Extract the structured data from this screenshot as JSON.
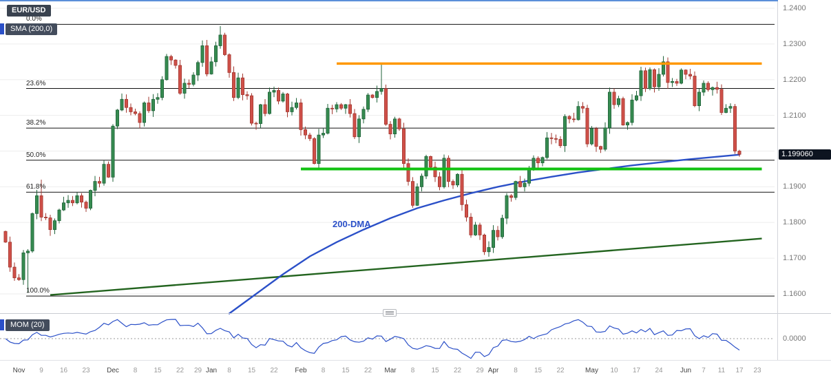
{
  "header": {
    "symbol": "EUR/USD",
    "sma_label": "SMA (200,0)"
  },
  "overlays": {
    "dma_label": "200-DMA"
  },
  "momentum_panel": {
    "label": "MOM (20)",
    "zero_label": "0.0000",
    "period": 20
  },
  "price_axis": {
    "labels": [
      "1.2400",
      "1.2300",
      "1.2200",
      "1.2100",
      "1.1900",
      "1.1800",
      "1.1700",
      "1.1600"
    ],
    "gridlines": [
      1.24,
      1.23,
      1.22,
      1.21,
      1.2,
      1.19,
      1.18,
      1.17,
      1.16
    ],
    "last_price": "1.199060",
    "last_price_value": 1.19906
  },
  "time_axis": {
    "ticks": [
      [
        "Nov",
        3
      ],
      [
        "9",
        8
      ],
      [
        "16",
        13
      ],
      [
        "23",
        18
      ],
      [
        "Dec",
        24
      ],
      [
        "8",
        29
      ],
      [
        "15",
        34
      ],
      [
        "22",
        39
      ],
      [
        "29",
        43
      ],
      [
        "Jan",
        46
      ],
      [
        "8",
        50
      ],
      [
        "15",
        55
      ],
      [
        "22",
        60
      ],
      [
        "Feb",
        66
      ],
      [
        "8",
        71
      ],
      [
        "15",
        76
      ],
      [
        "22",
        81
      ],
      [
        "Mar",
        86
      ],
      [
        "8",
        91
      ],
      [
        "15",
        96
      ],
      [
        "22",
        101
      ],
      [
        "29",
        106
      ],
      [
        "Apr",
        109
      ],
      [
        "8",
        114
      ],
      [
        "15",
        119
      ],
      [
        "22",
        124
      ],
      [
        "May",
        131
      ],
      [
        "10",
        136
      ],
      [
        "17",
        141
      ],
      [
        "24",
        146
      ],
      [
        "Jun",
        152
      ],
      [
        "7",
        156
      ],
      [
        "11",
        160
      ],
      [
        "17",
        164
      ],
      [
        "23",
        168
      ]
    ]
  },
  "chart_data": {
    "type": "candlestick",
    "symbol": "EUR/USD",
    "ylim": [
      1.155,
      1.242
    ],
    "closes": [
      1.1745,
      1.1675,
      1.1645,
      1.164,
      1.1715,
      1.172,
      1.1825,
      1.1875,
      1.1815,
      1.1813,
      1.178,
      1.1805,
      1.1835,
      1.1855,
      1.1862,
      1.1855,
      1.1875,
      1.1857,
      1.184,
      1.189,
      1.1915,
      1.191,
      1.1963,
      1.1927,
      1.207,
      1.2115,
      1.2145,
      1.2122,
      1.211,
      1.2105,
      1.208,
      1.2135,
      1.2113,
      1.2145,
      1.215,
      1.22,
      1.2265,
      1.2255,
      1.224,
      1.2162,
      1.219,
      1.2187,
      1.2213,
      1.2248,
      1.2295,
      1.2216,
      1.225,
      1.2295,
      1.2325,
      1.227,
      1.222,
      1.215,
      1.2205,
      1.2158,
      1.2155,
      1.2078,
      1.2077,
      1.213,
      1.2105,
      1.2165,
      1.217,
      1.214,
      1.216,
      1.211,
      1.2122,
      1.2135,
      1.206,
      1.2045,
      1.2035,
      1.1965,
      1.2045,
      1.205,
      1.212,
      1.2118,
      1.213,
      1.212,
      1.213,
      1.2105,
      1.204,
      1.209,
      1.2117,
      1.2157,
      1.215,
      1.2167,
      1.2175,
      1.2075,
      1.2048,
      1.209,
      1.2062,
      1.1965,
      1.1915,
      1.1848,
      1.19,
      1.193,
      1.1985,
      1.1955,
      1.1928,
      1.19,
      1.198,
      1.1915,
      1.1905,
      1.1935,
      1.185,
      1.1815,
      1.1765,
      1.1793,
      1.1765,
      1.1718,
      1.173,
      1.1778,
      1.176,
      1.1812,
      1.1875,
      1.187,
      1.1915,
      1.19,
      1.191,
      1.1948,
      1.198,
      1.1967,
      1.1982,
      1.2037,
      1.2035,
      1.2033,
      1.2015,
      1.2097,
      1.209,
      1.2088,
      1.2125,
      1.212,
      1.202,
      1.2063,
      1.2013,
      1.2005,
      1.2065,
      1.2165,
      1.213,
      1.2147,
      1.2073,
      1.208,
      1.2143,
      1.2155,
      1.2225,
      1.2175,
      1.2228,
      1.218,
      1.2215,
      1.225,
      1.2192,
      1.2195,
      1.219,
      1.2227,
      1.2215,
      1.221,
      1.2127,
      1.2165,
      1.219,
      1.2172,
      1.2178,
      1.2173,
      1.2108,
      1.212,
      1.2125,
      1.2,
      1.1991
    ],
    "first_open": 1.1775,
    "wick_overrides": {
      "5": {
        "low": 1.1603
      },
      "8": {
        "high": 1.192
      },
      "44": {
        "high": 1.231
      },
      "48": {
        "high": 1.235
      },
      "70": {
        "low": 1.1952
      },
      "84": {
        "high": 1.2243
      },
      "108": {
        "low": 1.1704
      },
      "147": {
        "high": 1.2266
      },
      "163": {
        "high": 1.2132,
        "low": 1.1992
      },
      "164": {
        "low": 1.1984
      }
    },
    "fib": {
      "high": 1.2355,
      "low": 1.1594,
      "levels": [
        {
          "pct": "0.0%",
          "value": 0
        },
        {
          "pct": "23.6%",
          "value": 0.236
        },
        {
          "pct": "38.2%",
          "value": 0.382
        },
        {
          "pct": "50.0%",
          "value": 0.5
        },
        {
          "pct": "61.8%",
          "value": 0.618
        },
        {
          "pct": "100.0%",
          "value": 1
        }
      ]
    },
    "resistance_line": {
      "price": 1.2245,
      "from_i": 74,
      "to_i": 169
    },
    "support_line": {
      "price": 1.195,
      "from_i": 66,
      "to_i": 169
    },
    "trendline": {
      "from": [
        10,
        1.1597
      ],
      "to": [
        169,
        1.1755
      ]
    },
    "dma_points": [
      [
        50,
        1.1545
      ],
      [
        56,
        1.16
      ],
      [
        62,
        1.1655
      ],
      [
        68,
        1.1705
      ],
      [
        74,
        1.1745
      ],
      [
        80,
        1.178
      ],
      [
        86,
        1.1812
      ],
      [
        92,
        1.184
      ],
      [
        98,
        1.1862
      ],
      [
        104,
        1.1882
      ],
      [
        110,
        1.19
      ],
      [
        116,
        1.1915
      ],
      [
        122,
        1.1928
      ],
      [
        128,
        1.194
      ],
      [
        134,
        1.195
      ],
      [
        140,
        1.196
      ],
      [
        146,
        1.1968
      ],
      [
        152,
        1.1976
      ],
      [
        158,
        1.1983
      ],
      [
        164,
        1.199
      ]
    ],
    "momentum": {
      "period": 20,
      "zero": 0
    }
  },
  "colors": {
    "up": "#368b50",
    "up_stroke": "#20633a",
    "down": "#cf5049",
    "down_stroke": "#a33830",
    "dma": "#2b50c8",
    "trend": "#23641f",
    "resistance": "#ff9800",
    "support": "#12c212",
    "grid": "#ededed",
    "fib_line": "#111111",
    "axis_line": "#d2d5da",
    "top_border": "#5b8fd9"
  }
}
